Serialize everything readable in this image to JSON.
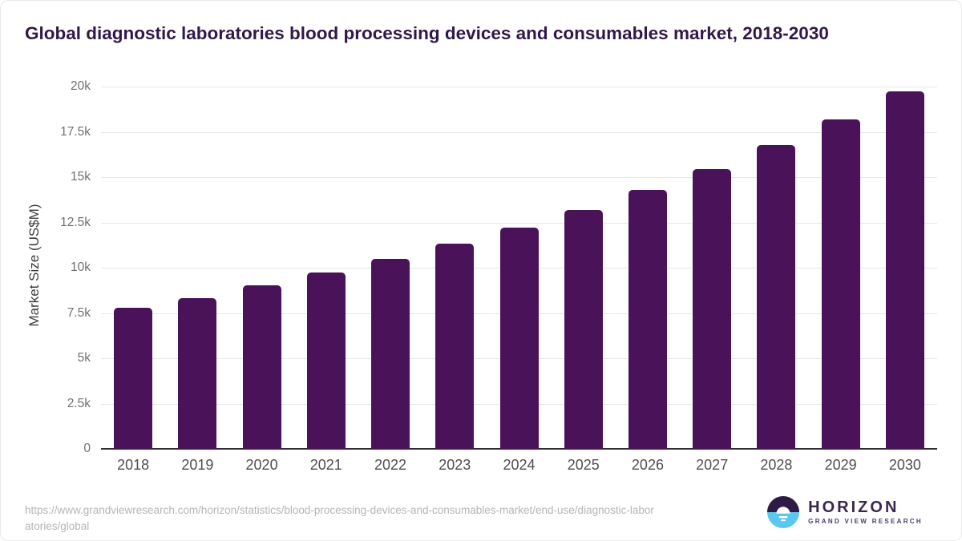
{
  "title": "Global diagnostic laboratories blood processing devices and consumables market, 2018-2030",
  "chart_data": {
    "type": "bar",
    "title": "Global diagnostic laboratories blood processing devices and consumables market, 2018-2030",
    "categories": [
      "2018",
      "2019",
      "2020",
      "2021",
      "2022",
      "2023",
      "2024",
      "2025",
      "2026",
      "2027",
      "2028",
      "2029",
      "2030"
    ],
    "values": [
      7780,
      8340,
      9010,
      9730,
      10500,
      11320,
      12230,
      13190,
      14290,
      15440,
      16770,
      18180,
      19720
    ],
    "xlabel": "",
    "ylabel": "Market Size (US$M)",
    "ylim": [
      0,
      20000
    ],
    "ytick_step": 2500,
    "ytick_labels": [
      "0",
      "2.5k",
      "5k",
      "7.5k",
      "10k",
      "12.5k",
      "15k",
      "17.5k",
      "20k"
    ],
    "grid": true,
    "legend": "none",
    "bar_color": "#4a1259"
  },
  "footer": {
    "url_lines": [
      "https://www.grandviewresearch.com/horizon/statistics/blood-processing-devices-and-consumables-market/end-use/diagnostic-labor",
      "atories/global"
    ],
    "logo": {
      "brand": "HORIZON",
      "subtitle": "GRAND VIEW RESEARCH",
      "icon": "horizon-sunset-circle-icon"
    }
  },
  "colors": {
    "bar": "#4a1259",
    "title_text": "#32184a",
    "axis_line": "#2f2f2f",
    "gridline": "#e7e7e7",
    "ytick_label": "#707070",
    "xtick_label": "#4f4f4f",
    "url_text": "#b5b5b5",
    "logo_dark_half": "#2d1a47",
    "logo_blue_half": "#5bc6ee",
    "logo_text": "#39284f"
  }
}
